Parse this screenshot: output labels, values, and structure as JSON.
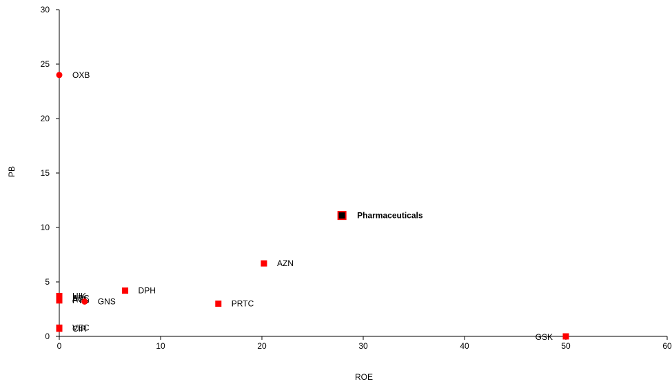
{
  "chart_data": {
    "type": "scatter",
    "title": "",
    "xlabel": "ROE",
    "ylabel": "PB",
    "xlim": [
      0,
      60
    ],
    "ylim": [
      0,
      30
    ],
    "x_ticks": [
      0,
      10,
      20,
      30,
      40,
      50,
      60
    ],
    "y_ticks": [
      0,
      5,
      10,
      15,
      20,
      25,
      30
    ],
    "x_tick_labels": [
      "0",
      "10",
      "20",
      "30",
      "40",
      "50",
      "60"
    ],
    "y_tick_labels": [
      "0",
      "5",
      "10",
      "15",
      "20",
      "25",
      "30"
    ],
    "grid": false,
    "legend": "none",
    "colors": {
      "point": "#ff0000",
      "highlight_fill": "#000000",
      "highlight_border": "#ff0000"
    },
    "points": [
      {
        "label": "OXB",
        "x": 0,
        "y": 24.0,
        "marker": "circle"
      },
      {
        "label": "HIK",
        "x": 0,
        "y": 3.7,
        "marker": "square"
      },
      {
        "label": "ABC",
        "x": 0,
        "y": 3.5,
        "marker": "square"
      },
      {
        "label": "PTG",
        "x": 0,
        "y": 3.3,
        "marker": "square"
      },
      {
        "label": "AGL",
        "x": 0,
        "y": 3.4,
        "marker": "square"
      },
      {
        "label": "GNS",
        "x": 2.5,
        "y": 3.2,
        "marker": "circle"
      },
      {
        "label": "DPH",
        "x": 6.5,
        "y": 4.2,
        "marker": "square"
      },
      {
        "label": "PRTC",
        "x": 15.7,
        "y": 3.0,
        "marker": "square"
      },
      {
        "label": "AZN",
        "x": 20.2,
        "y": 6.7,
        "marker": "square"
      },
      {
        "label": "VEC",
        "x": 0,
        "y": 0.8,
        "marker": "square"
      },
      {
        "label": "CIR",
        "x": 0,
        "y": 0.7,
        "marker": "square"
      },
      {
        "label": "GSK",
        "x": 50.0,
        "y": 0.0,
        "marker": "square"
      },
      {
        "label": "Pharmaceuticals",
        "x": 27.9,
        "y": 11.1,
        "marker": "highlight",
        "bold": true
      }
    ]
  }
}
